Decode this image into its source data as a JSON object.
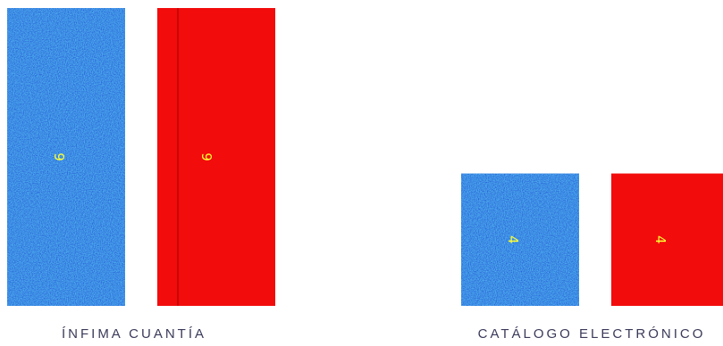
{
  "chart_data": {
    "type": "bar",
    "categories": [
      "ÍNFIMA CUANTÍA",
      "CATÁLOGO ELECTRÓNICO"
    ],
    "series": [
      {
        "values": [
          9,
          4
        ],
        "color": "#2a63d8",
        "texture": "speckled-blue"
      },
      {
        "values": [
          9,
          4
        ],
        "color": "#f20c0c",
        "texture": "solid"
      }
    ],
    "data_labels": {
      "show": true,
      "orientation": "rotated-90",
      "color": "#ffff33"
    },
    "ylim": [
      0,
      9.5
    ],
    "grid": false,
    "legend": "none",
    "title": "",
    "xlabel": "",
    "ylabel": ""
  }
}
